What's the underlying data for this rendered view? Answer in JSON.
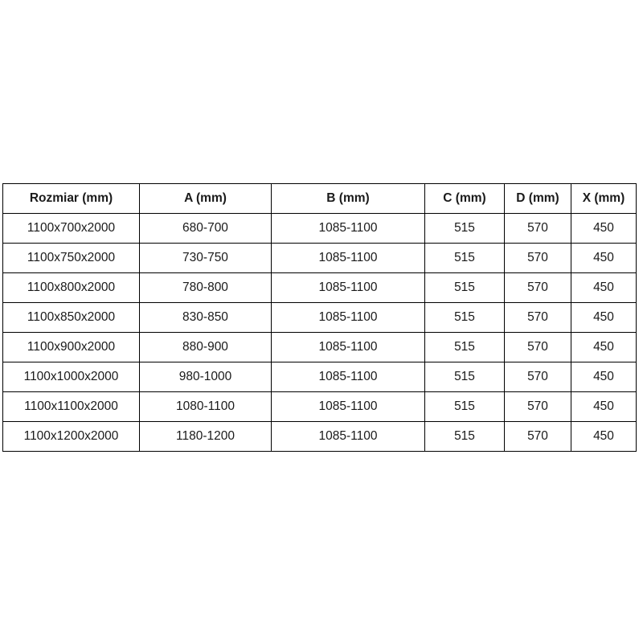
{
  "table": {
    "columns": [
      "Rozmiar (mm)",
      "A (mm)",
      "B (mm)",
      "C (mm)",
      "D (mm)",
      "X (mm)"
    ],
    "rows": [
      [
        "1100x700x2000",
        "680-700",
        "1085-1100",
        "515",
        "570",
        "450"
      ],
      [
        "1100x750x2000",
        "730-750",
        "1085-1100",
        "515",
        "570",
        "450"
      ],
      [
        "1100x800x2000",
        "780-800",
        "1085-1100",
        "515",
        "570",
        "450"
      ],
      [
        "1100x850x2000",
        "830-850",
        "1085-1100",
        "515",
        "570",
        "450"
      ],
      [
        "1100x900x2000",
        "880-900",
        "1085-1100",
        "515",
        "570",
        "450"
      ],
      [
        "1100x1000x2000",
        "980-1000",
        "1085-1100",
        "515",
        "570",
        "450"
      ],
      [
        "1100x1100x2000",
        "1080-1100",
        "1085-1100",
        "515",
        "570",
        "450"
      ],
      [
        "1100x1200x2000",
        "1180-1200",
        "1085-1100",
        "515",
        "570",
        "450"
      ]
    ]
  },
  "colors": {
    "border": "#000000",
    "text": "#1a1a1a",
    "background": "#ffffff"
  }
}
